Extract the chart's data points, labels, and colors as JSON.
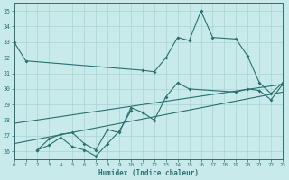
{
  "xlabel": "Humidex (Indice chaleur)",
  "xlim": [
    0,
    23
  ],
  "ylim": [
    25.5,
    35.5
  ],
  "xticks": [
    0,
    1,
    2,
    3,
    4,
    5,
    6,
    7,
    8,
    9,
    10,
    11,
    12,
    13,
    14,
    15,
    16,
    17,
    18,
    19,
    20,
    21,
    22,
    23
  ],
  "yticks": [
    26,
    27,
    28,
    29,
    30,
    31,
    32,
    33,
    34,
    35
  ],
  "background_color": "#c8eaea",
  "grid_color": "#a8d4d4",
  "line_color": "#2a7070",
  "series1_x": [
    0,
    1,
    11,
    12,
    13,
    14,
    15,
    16,
    17,
    19,
    20,
    21,
    22,
    23
  ],
  "series1_y": [
    33.0,
    31.8,
    31.2,
    31.1,
    32.0,
    33.3,
    33.1,
    35.0,
    33.3,
    33.2,
    32.1,
    30.4,
    29.7,
    30.4
  ],
  "series2_x": [
    2,
    3,
    4,
    5,
    6,
    7,
    8,
    9,
    10
  ],
  "series2_y": [
    26.1,
    26.4,
    26.9,
    26.3,
    26.1,
    25.7,
    26.5,
    27.3,
    28.6
  ],
  "series3_x": [
    2,
    3,
    4,
    5,
    6,
    7,
    8,
    9,
    10,
    11,
    12,
    13,
    14,
    15,
    19,
    20,
    21,
    22,
    23
  ],
  "series3_y": [
    26.1,
    26.8,
    27.1,
    27.2,
    26.5,
    26.1,
    27.4,
    27.2,
    28.8,
    28.5,
    28.0,
    29.5,
    30.4,
    30.0,
    29.8,
    30.0,
    29.9,
    29.3,
    30.3
  ],
  "series4_x": [
    0,
    23
  ],
  "series4_y": [
    26.5,
    29.8
  ],
  "series5_x": [
    0,
    23
  ],
  "series5_y": [
    27.8,
    30.3
  ]
}
